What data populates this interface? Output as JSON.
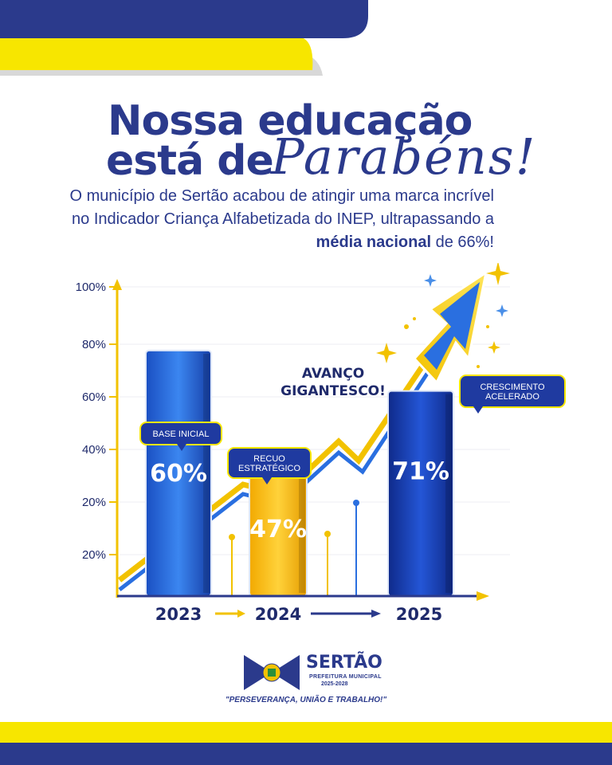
{
  "colors": {
    "navy": "#2b3a8c",
    "yellow": "#f7e600",
    "bar_blue": "#1e5bd1",
    "bar_yellow": "#f2b705",
    "bar_dark_blue": "#14329c"
  },
  "headline": {
    "line1": "Nossa educação",
    "line2": "está de",
    "line3": "Parabéns!"
  },
  "subtitle": {
    "part1": "O município de Sertão acabou de atingir uma marca incrível no Indicador Criança Alfabetizada do INEP, ultrapassando a ",
    "bold": "média nacional",
    "part2": " de 66%!"
  },
  "chart_data": {
    "type": "bar",
    "categories": [
      "2023",
      "2024",
      "2025"
    ],
    "values": [
      60,
      47,
      71
    ],
    "value_labels": [
      "60%",
      "47%",
      "71%"
    ],
    "y_tick_labels": [
      "20%",
      "20%",
      "40%",
      "60%",
      "80%",
      "100%"
    ],
    "callouts": [
      {
        "text_lines": [
          "BASE INICIAL"
        ]
      },
      {
        "text_lines": [
          "RECUO",
          "ESTRATÉGICO"
        ]
      },
      {
        "text_lines": [
          "CRESCIMENTO",
          "ACELERADO"
        ]
      }
    ],
    "annotation_lines": [
      "AVANÇO",
      "GIGANTESCO!"
    ],
    "bar_colors": [
      "#1e5bd1",
      "#f2b705",
      "#14329c"
    ]
  },
  "logo": {
    "name": "SERTÃO",
    "subtitle": "PREFEITURA MUNICIPAL",
    "term": "2025-2028",
    "motto": "\"PERSEVERANÇA, UNIÃO E TRABALHO!\""
  }
}
